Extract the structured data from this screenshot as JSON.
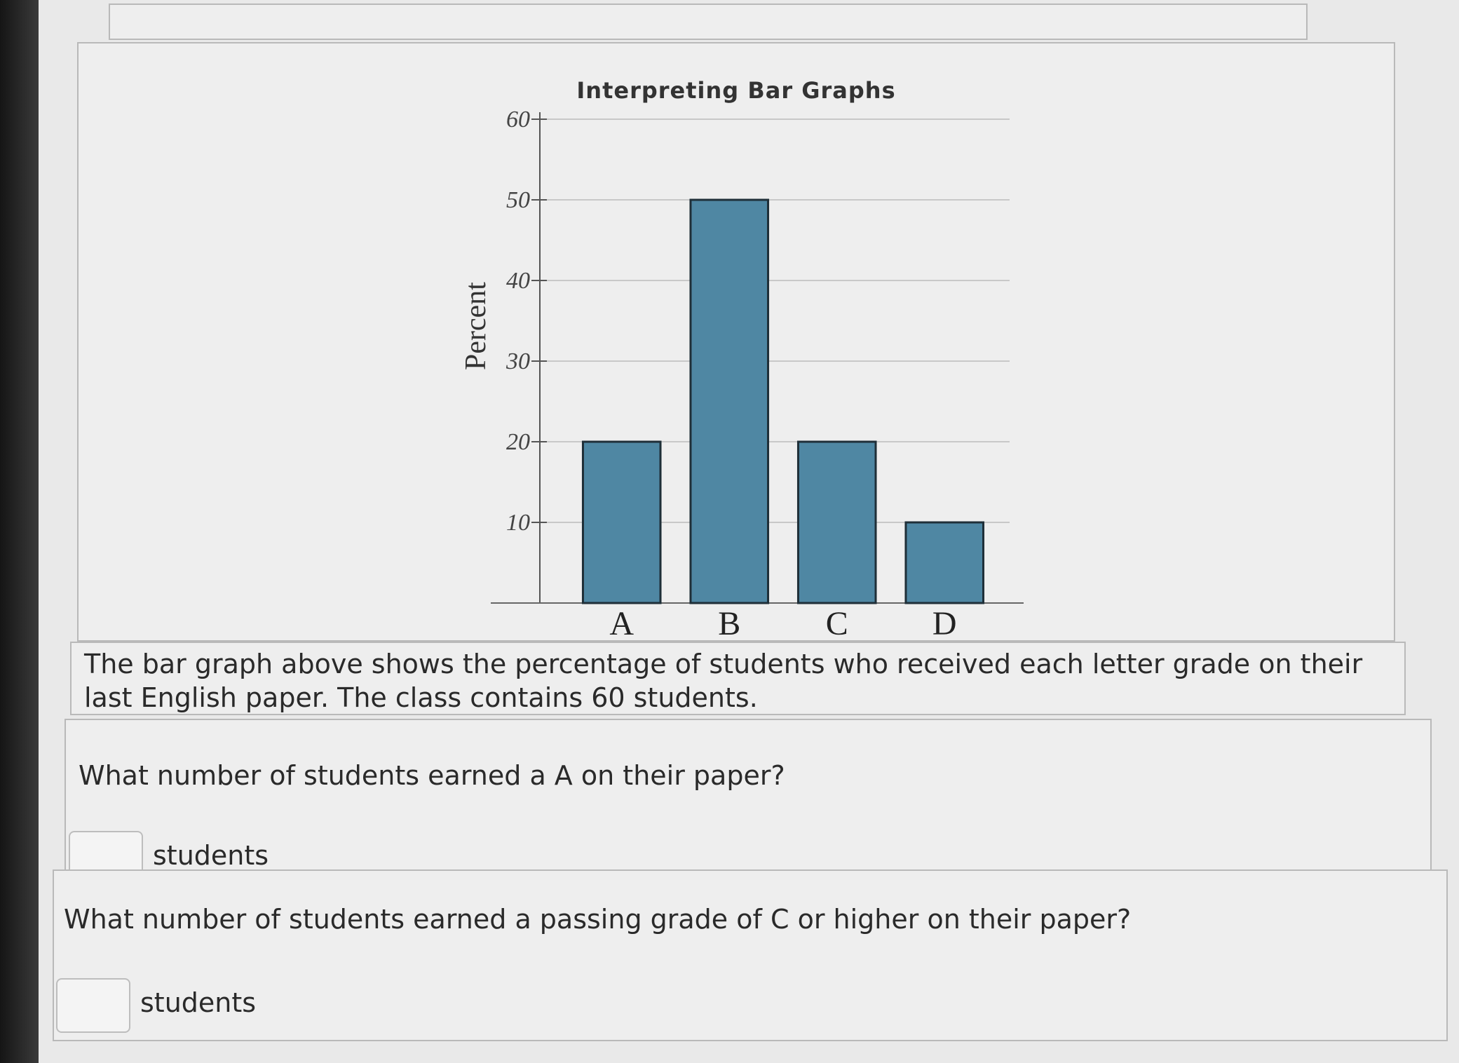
{
  "header": {
    "title": "Interpreting Bar Graphs"
  },
  "chart_data": {
    "type": "bar",
    "y_label": "Percent",
    "categories": [
      "A",
      "B",
      "C",
      "D"
    ],
    "values": [
      20,
      50,
      20,
      10
    ],
    "color": "#4f87a3",
    "ylim": [
      0,
      60
    ],
    "yticks": [
      10,
      20,
      30,
      40,
      50,
      60
    ],
    "grid": true
  },
  "prompt": "The bar graph above shows the percentage of students who received each letter grade on their last English paper. The class contains 60 students.",
  "questions": [
    {
      "text": "What number of students earned a A on their paper?",
      "unit": "students"
    },
    {
      "text": "What number of students earned a passing grade of C or higher on their paper?",
      "unit": "students"
    }
  ]
}
